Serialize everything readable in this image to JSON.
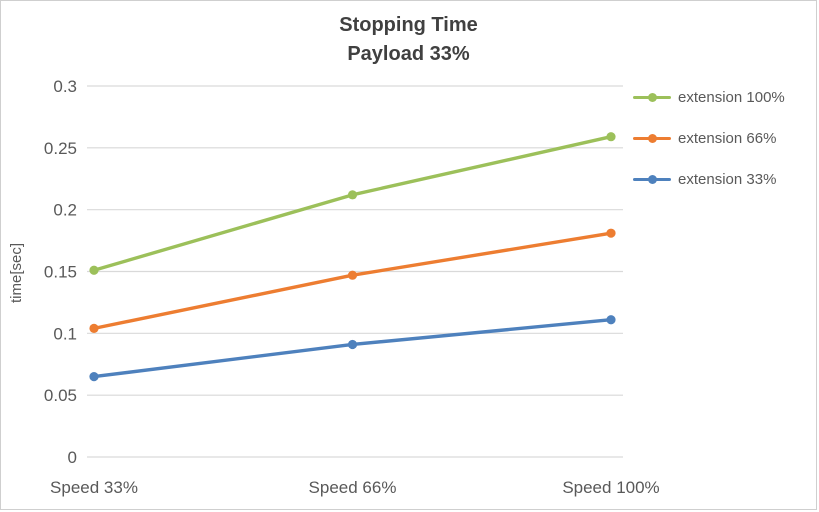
{
  "chart_data": {
    "type": "line",
    "title": "Stopping Time",
    "subtitle": "Payload 33%",
    "ylabel": "time[sec]",
    "xlabel": "",
    "categories": [
      "Speed 33%",
      "Speed 66%",
      "Speed 100%"
    ],
    "series": [
      {
        "name": "extension 100%",
        "color": "#9CC05A",
        "values": [
          0.151,
          0.212,
          0.259
        ]
      },
      {
        "name": "extension 66%",
        "color": "#ED7D31",
        "values": [
          0.104,
          0.147,
          0.181
        ]
      },
      {
        "name": "extension 33%",
        "color": "#4E81BD",
        "values": [
          0.065,
          0.091,
          0.111
        ]
      }
    ],
    "ylim": [
      0,
      0.3
    ],
    "yticks": [
      "0",
      "0.05",
      "0.1",
      "0.15",
      "0.2",
      "0.25",
      "0.3"
    ],
    "grid": "horizontal",
    "grid_color": "#d9d9d9",
    "text_color": "#595959",
    "legend_position": "right"
  }
}
